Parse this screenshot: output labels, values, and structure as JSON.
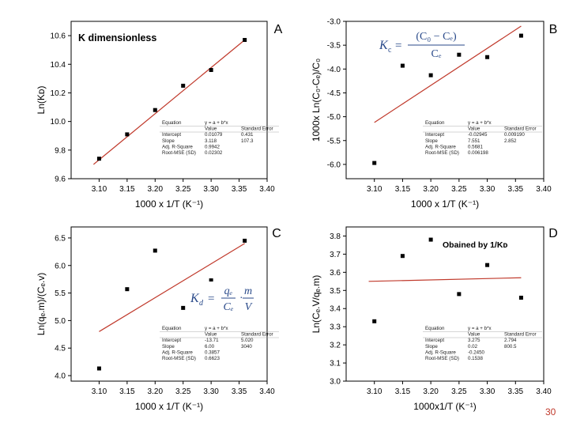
{
  "page": {
    "number": "30",
    "accent_color": "#c0392b"
  },
  "chart_data": [
    {
      "panel_label": "A",
      "type": "scatter",
      "fit": "linear",
      "x": [
        3.1,
        3.15,
        3.2,
        3.25,
        3.3,
        3.36
      ],
      "y": [
        9.74,
        9.91,
        10.08,
        10.25,
        10.36,
        10.57
      ],
      "fit_line": {
        "x": [
          3.09,
          3.36
        ],
        "y": [
          9.7,
          10.57
        ]
      },
      "xlim": [
        3.05,
        3.4
      ],
      "ylim": [
        9.6,
        10.7
      ],
      "xticks": [
        "3.10",
        "3.15",
        "3.20",
        "3.25",
        "3.30",
        "3.35",
        "3.40"
      ],
      "yticks": [
        "9.6",
        "9.8",
        "10.0",
        "10.2",
        "10.4",
        "10.6"
      ],
      "xlabel": "1000 x 1/T (K⁻¹)",
      "ylabel": "Ln(Kᴅ)",
      "annotation": "K dimensionless",
      "fit_table": [
        [
          "Equation",
          "y = a + b*x",
          ""
        ],
        [
          "",
          "Value",
          "Standard Error"
        ],
        [
          "Intercept",
          "0.01079",
          "0.431"
        ],
        [
          "Slope",
          "3.118",
          "107.3"
        ],
        [
          "Adj. R-Square",
          "0.9942",
          ""
        ],
        [
          "Root-MSE (SD)",
          "0.02302",
          ""
        ]
      ]
    },
    {
      "panel_label": "B",
      "type": "scatter",
      "fit": "linear",
      "x": [
        3.1,
        3.15,
        3.2,
        3.25,
        3.3,
        3.36
      ],
      "y": [
        -5.97,
        -3.93,
        -4.13,
        -3.7,
        -3.75,
        -3.3
      ],
      "fit_line": {
        "x": [
          3.1,
          3.36
        ],
        "y": [
          -5.12,
          -3.1
        ]
      },
      "xlim": [
        3.05,
        3.4
      ],
      "ylim": [
        -6.3,
        -3.0
      ],
      "xticks": [
        "3.10",
        "3.15",
        "3.20",
        "3.25",
        "3.30",
        "3.35",
        "3.40"
      ],
      "yticks": [
        "-6.0",
        "-5.5",
        "-5.0",
        "-4.5",
        "-4.0",
        "-3.5",
        "-3.0"
      ],
      "xlabel": "1000 x 1/T (K⁻¹)",
      "ylabel": "1000x Ln(C₀-Cₑ)/C₀",
      "equation": {
        "lhs": "K",
        "sub": "c",
        "numer": "(C₀ − Cₑ)",
        "denom": "Cₑ"
      },
      "fit_table": [
        [
          "Equation",
          "y = a + b*x",
          ""
        ],
        [
          "",
          "Value",
          "Standard Error"
        ],
        [
          "Intercept",
          "-0.02945",
          "0.009190"
        ],
        [
          "Slope",
          "7.551",
          "2.852"
        ],
        [
          "Adj. R-Square",
          "0.5681",
          ""
        ],
        [
          "Root-MSE (SD)",
          "0.006198",
          ""
        ]
      ]
    },
    {
      "panel_label": "C",
      "type": "scatter",
      "fit": "linear",
      "x": [
        3.1,
        3.15,
        3.2,
        3.25,
        3.3,
        3.36
      ],
      "y": [
        4.13,
        5.57,
        6.27,
        5.23,
        5.73,
        6.45
      ],
      "fit_line": {
        "x": [
          3.1,
          3.36
        ],
        "y": [
          4.8,
          6.4
        ]
      },
      "xlim": [
        3.05,
        3.4
      ],
      "ylim": [
        3.9,
        6.7
      ],
      "xticks": [
        "3.10",
        "3.15",
        "3.20",
        "3.25",
        "3.30",
        "3.35",
        "3.40"
      ],
      "yticks": [
        "4.0",
        "4.5",
        "5.0",
        "5.5",
        "6.0",
        "6.5"
      ],
      "xlabel": "1000 x 1/T (K⁻¹)",
      "ylabel": "Ln(qₑ.m)/(Cₑ.v)",
      "equation": {
        "lhs": "K",
        "sub": "d",
        "f1_numer": "qₑ",
        "f1_denom": "Cₑ",
        "op": "·",
        "f2_numer": "m",
        "f2_denom": "V"
      },
      "fit_table": [
        [
          "Equation",
          "y = a + b*x",
          ""
        ],
        [
          "",
          "Value",
          "Standard Error"
        ],
        [
          "Intercept",
          "-13.71",
          "5.020"
        ],
        [
          "Slope",
          "6.00",
          "3040"
        ],
        [
          "Adj. R-Square",
          "0.3857",
          ""
        ],
        [
          "Root-MSE (SD)",
          "0.6623",
          ""
        ]
      ]
    },
    {
      "panel_label": "D",
      "type": "scatter",
      "fit": "linear",
      "x": [
        3.1,
        3.15,
        3.2,
        3.25,
        3.3,
        3.36
      ],
      "y": [
        3.33,
        3.69,
        3.78,
        3.48,
        3.64,
        3.46
      ],
      "fit_line": {
        "x": [
          3.09,
          3.36
        ],
        "y": [
          3.55,
          3.57
        ]
      },
      "xlim": [
        3.05,
        3.4
      ],
      "ylim": [
        3.0,
        3.85
      ],
      "xticks": [
        "3.10",
        "3.15",
        "3.20",
        "3.25",
        "3.30",
        "3.35",
        "3.40"
      ],
      "yticks": [
        "3.0",
        "3.1",
        "3.2",
        "3.3",
        "3.4",
        "3.5",
        "3.6",
        "3.7",
        "3.8"
      ],
      "xlabel": "1000x1/T (K⁻¹)",
      "ylabel": "Ln(Cₑ.V/qₑ.m)",
      "annotation": "Obained by 1/Kᴅ",
      "fit_table": [
        [
          "Equation",
          "y = a + b*x",
          ""
        ],
        [
          "",
          "Value",
          "Standard Error"
        ],
        [
          "Intercept",
          "3.275",
          "2.794"
        ],
        [
          "Slope",
          "0.02",
          "800.5"
        ],
        [
          "Adj. R-Square",
          "-0.2450",
          ""
        ],
        [
          "Root-MSE (SD)",
          "0.1538",
          ""
        ]
      ]
    }
  ]
}
